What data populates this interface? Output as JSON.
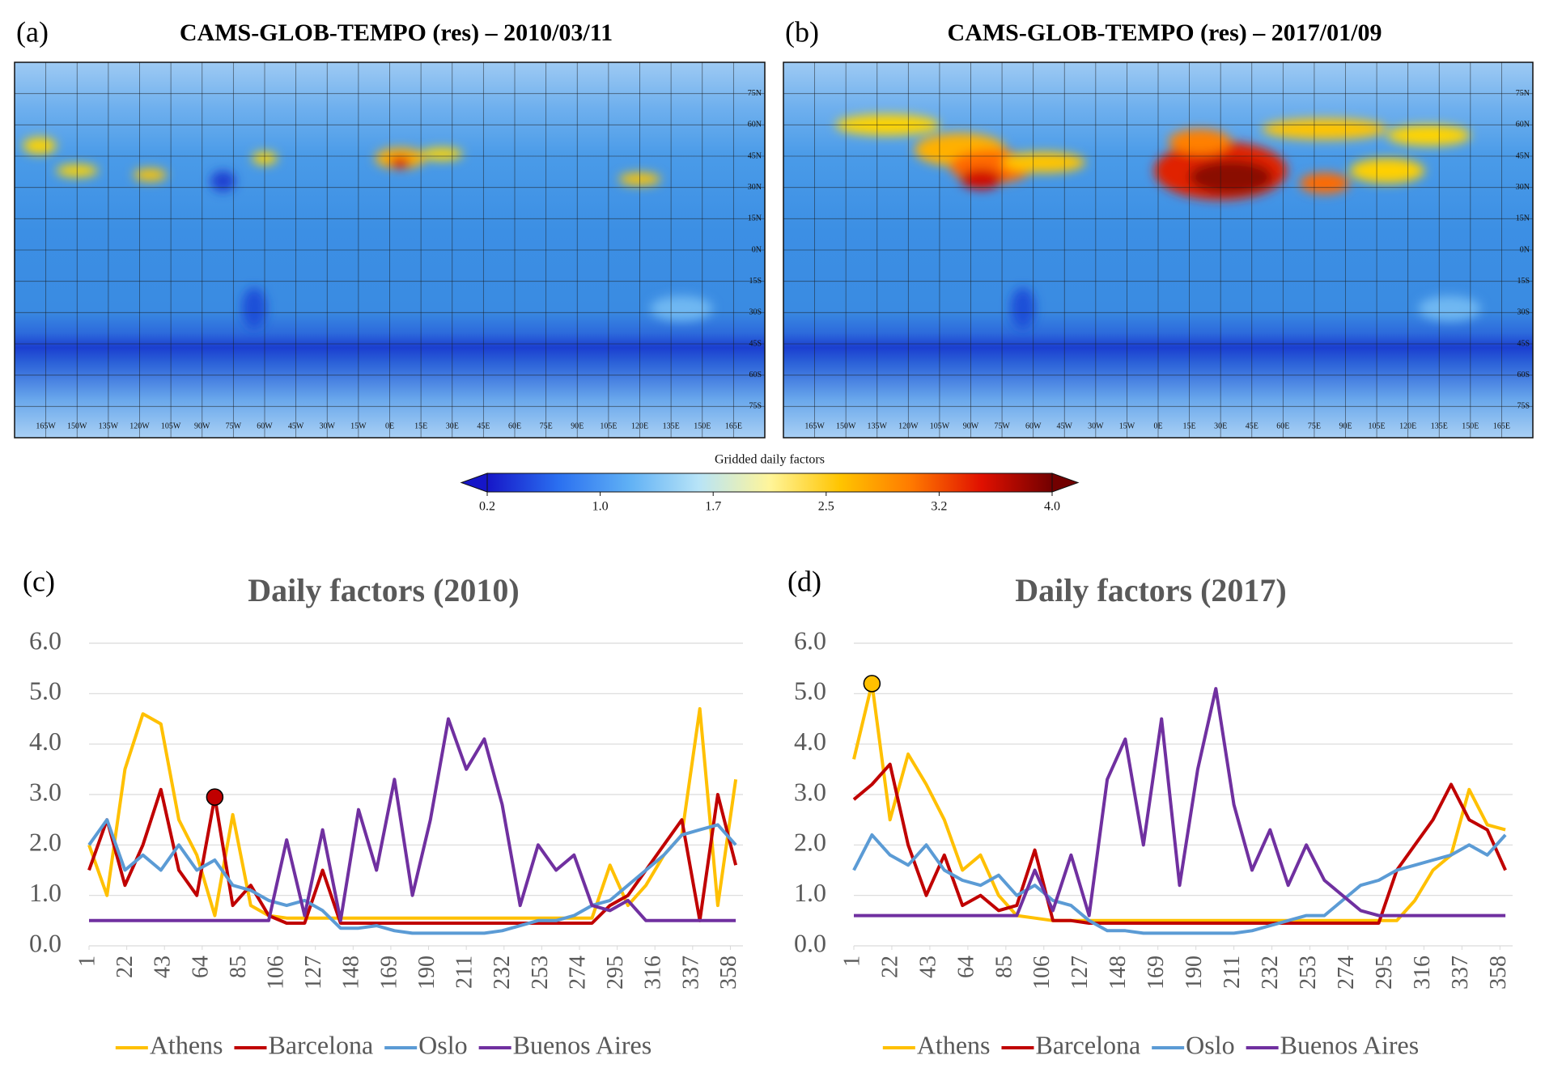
{
  "chart_data": [
    {
      "type": "map",
      "panel": "(a)",
      "title": "CAMS-GLOB-TEMPO (res) – 2010/03/11",
      "xlim": [
        -180,
        180
      ],
      "ylim": [
        -90,
        90
      ],
      "xticks": [
        {
          "value": -165,
          "label": "165W"
        },
        {
          "value": -150,
          "label": "150W"
        },
        {
          "value": -135,
          "label": "135W"
        },
        {
          "value": -120,
          "label": "120W"
        },
        {
          "value": -105,
          "label": "105W"
        },
        {
          "value": -90,
          "label": "90W"
        },
        {
          "value": -75,
          "label": "75W"
        },
        {
          "value": -60,
          "label": "60W"
        },
        {
          "value": -45,
          "label": "45W"
        },
        {
          "value": -30,
          "label": "30W"
        },
        {
          "value": -15,
          "label": "15W"
        },
        {
          "value": 0,
          "label": "0E"
        },
        {
          "value": 15,
          "label": "15E"
        },
        {
          "value": 30,
          "label": "30E"
        },
        {
          "value": 45,
          "label": "45E"
        },
        {
          "value": 60,
          "label": "60E"
        },
        {
          "value": 75,
          "label": "75E"
        },
        {
          "value": 90,
          "label": "90E"
        },
        {
          "value": 105,
          "label": "105E"
        },
        {
          "value": 120,
          "label": "120E"
        },
        {
          "value": 135,
          "label": "135E"
        },
        {
          "value": 150,
          "label": "150E"
        },
        {
          "value": 165,
          "label": "165E"
        }
      ],
      "yticks": [
        {
          "value": 75,
          "label": "75N"
        },
        {
          "value": 60,
          "label": "60N"
        },
        {
          "value": 45,
          "label": "45N"
        },
        {
          "value": 30,
          "label": "30N"
        },
        {
          "value": 15,
          "label": "15N"
        },
        {
          "value": 0,
          "label": "0N"
        },
        {
          "value": -15,
          "label": "15S"
        },
        {
          "value": -30,
          "label": "30S"
        },
        {
          "value": -45,
          "label": "45S"
        },
        {
          "value": -60,
          "label": "60S"
        },
        {
          "value": -75,
          "label": "75S"
        }
      ]
    },
    {
      "type": "map",
      "panel": "(b)",
      "title": "CAMS-GLOB-TEMPO (res) – 2017/01/09",
      "xlim": [
        -180,
        180
      ],
      "ylim": [
        -90,
        90
      ],
      "xticks": [
        {
          "value": -165,
          "label": "165W"
        },
        {
          "value": -150,
          "label": "150W"
        },
        {
          "value": -135,
          "label": "135W"
        },
        {
          "value": -120,
          "label": "120W"
        },
        {
          "value": -105,
          "label": "105W"
        },
        {
          "value": -90,
          "label": "90W"
        },
        {
          "value": -75,
          "label": "75W"
        },
        {
          "value": -60,
          "label": "60W"
        },
        {
          "value": -45,
          "label": "45W"
        },
        {
          "value": -30,
          "label": "30W"
        },
        {
          "value": -15,
          "label": "15W"
        },
        {
          "value": 0,
          "label": "0E"
        },
        {
          "value": 15,
          "label": "15E"
        },
        {
          "value": 30,
          "label": "30E"
        },
        {
          "value": 45,
          "label": "45E"
        },
        {
          "value": 60,
          "label": "60E"
        },
        {
          "value": 75,
          "label": "75E"
        },
        {
          "value": 90,
          "label": "90E"
        },
        {
          "value": 105,
          "label": "105E"
        },
        {
          "value": 120,
          "label": "120E"
        },
        {
          "value": 135,
          "label": "135E"
        },
        {
          "value": 150,
          "label": "150E"
        },
        {
          "value": 165,
          "label": "165E"
        }
      ],
      "yticks": [
        {
          "value": 75,
          "label": "75N"
        },
        {
          "value": 60,
          "label": "60N"
        },
        {
          "value": 45,
          "label": "45N"
        },
        {
          "value": 30,
          "label": "30N"
        },
        {
          "value": 15,
          "label": "15N"
        },
        {
          "value": 0,
          "label": "0N"
        },
        {
          "value": -15,
          "label": "15S"
        },
        {
          "value": -30,
          "label": "30S"
        },
        {
          "value": -45,
          "label": "45S"
        },
        {
          "value": -60,
          "label": "60S"
        },
        {
          "value": -75,
          "label": "75S"
        }
      ]
    },
    {
      "type": "colorbar",
      "title": "Gridded daily factors",
      "xlim": [
        0.2,
        4
      ],
      "xticks": [
        0.2,
        {
          "value": 0.96,
          "label": "1.0"
        },
        {
          "value": 1.72,
          "label": "1.7"
        },
        {
          "value": 2.48,
          "label": "2.5"
        },
        {
          "value": 3.24,
          "label": "3.2"
        },
        {
          "value": 4,
          "label": "4.0"
        }
      ],
      "colors": [
        "#1616c8",
        "#2a6ff0",
        "#5fb0f5",
        "#b8e4f7",
        "#fff59a",
        "#ffc400",
        "#ff7a00",
        "#e01000",
        "#720000"
      ]
    },
    {
      "type": "line",
      "panel": "(c)",
      "title": "Daily factors (2010)",
      "x": [
        1,
        11,
        21,
        31,
        41,
        51,
        61,
        71,
        81,
        91,
        101,
        111,
        121,
        131,
        141,
        151,
        161,
        171,
        181,
        191,
        201,
        211,
        221,
        231,
        241,
        251,
        261,
        271,
        281,
        291,
        301,
        311,
        321,
        331,
        341,
        351,
        361
      ],
      "xlim": [
        1,
        365
      ],
      "xticks": [
        1,
        22,
        43,
        64,
        85,
        106,
        127,
        148,
        169,
        190,
        211,
        232,
        253,
        274,
        295,
        316,
        337,
        358
      ],
      "ylim": [
        0,
        6
      ],
      "yticks": [
        {
          "value": 0,
          "label": "0.0"
        },
        {
          "value": 1,
          "label": "1.0"
        },
        {
          "value": 2,
          "label": "2.0"
        },
        {
          "value": 3,
          "label": "3.0"
        },
        {
          "value": 4,
          "label": "4.0"
        },
        {
          "value": 5,
          "label": "5.0"
        },
        {
          "value": 6,
          "label": "6.0"
        }
      ],
      "grid": true,
      "series": [
        {
          "name": "Athens",
          "color": "#ffc000",
          "values": [
            2.0,
            1.0,
            3.5,
            4.6,
            4.4,
            2.5,
            1.8,
            0.6,
            2.6,
            0.8,
            0.6,
            0.55,
            0.55,
            0.55,
            0.55,
            0.55,
            0.55,
            0.55,
            0.55,
            0.55,
            0.55,
            0.55,
            0.55,
            0.55,
            0.55,
            0.55,
            0.55,
            0.55,
            0.55,
            1.6,
            0.8,
            1.2,
            1.8,
            2.2,
            4.7,
            0.8,
            3.3
          ]
        },
        {
          "name": "Barcelona",
          "color": "#c00000",
          "values": [
            1.5,
            2.5,
            1.2,
            2.0,
            3.1,
            1.5,
            1.0,
            2.95,
            0.8,
            1.2,
            0.6,
            0.45,
            0.45,
            1.5,
            0.45,
            0.45,
            0.45,
            0.45,
            0.45,
            0.45,
            0.45,
            0.45,
            0.45,
            0.45,
            0.45,
            0.45,
            0.45,
            0.45,
            0.45,
            0.8,
            1.0,
            1.5,
            2.0,
            2.5,
            0.5,
            3.0,
            1.6
          ]
        },
        {
          "name": "Oslo",
          "color": "#5b9bd5",
          "values": [
            2.0,
            2.5,
            1.5,
            1.8,
            1.5,
            2.0,
            1.5,
            1.7,
            1.2,
            1.1,
            0.9,
            0.8,
            0.9,
            0.7,
            0.35,
            0.35,
            0.4,
            0.3,
            0.25,
            0.25,
            0.25,
            0.25,
            0.25,
            0.3,
            0.4,
            0.5,
            0.5,
            0.6,
            0.8,
            0.9,
            1.2,
            1.5,
            1.8,
            2.2,
            2.3,
            2.4,
            2.0
          ]
        },
        {
          "name": "Buenos Aires",
          "color": "#7030a0",
          "values": [
            0.5,
            0.5,
            0.5,
            0.5,
            0.5,
            0.5,
            0.5,
            0.5,
            0.5,
            0.5,
            0.5,
            2.1,
            0.6,
            2.3,
            0.5,
            2.7,
            1.5,
            3.3,
            1.0,
            2.5,
            4.5,
            3.5,
            4.1,
            2.8,
            0.8,
            2.0,
            1.5,
            1.8,
            0.8,
            0.7,
            0.9,
            0.5,
            0.5,
            0.5,
            0.5,
            0.5,
            0.5
          ]
        }
      ],
      "highlight": {
        "series": 1,
        "index": 7,
        "color": "#c00000"
      }
    },
    {
      "type": "line",
      "panel": "(d)",
      "title": "Daily factors (2017)",
      "x": [
        1,
        11,
        21,
        31,
        41,
        51,
        61,
        71,
        81,
        91,
        101,
        111,
        121,
        131,
        141,
        151,
        161,
        171,
        181,
        191,
        201,
        211,
        221,
        231,
        241,
        251,
        261,
        271,
        281,
        291,
        301,
        311,
        321,
        331,
        341,
        351,
        361
      ],
      "xlim": [
        1,
        365
      ],
      "xticks": [
        1,
        22,
        43,
        64,
        85,
        106,
        127,
        148,
        169,
        190,
        211,
        232,
        253,
        274,
        295,
        316,
        337,
        358
      ],
      "ylim": [
        0,
        6
      ],
      "yticks": [
        {
          "value": 0,
          "label": "0.0"
        },
        {
          "value": 1,
          "label": "1.0"
        },
        {
          "value": 2,
          "label": "2.0"
        },
        {
          "value": 3,
          "label": "3.0"
        },
        {
          "value": 4,
          "label": "4.0"
        },
        {
          "value": 5,
          "label": "5.0"
        },
        {
          "value": 6,
          "label": "6.0"
        }
      ],
      "grid": true,
      "series": [
        {
          "name": "Athens",
          "color": "#ffc000",
          "values": [
            3.7,
            5.2,
            2.5,
            3.8,
            3.2,
            2.5,
            1.5,
            1.8,
            1.0,
            0.6,
            0.55,
            0.5,
            0.5,
            0.5,
            0.5,
            0.5,
            0.5,
            0.5,
            0.5,
            0.5,
            0.5,
            0.5,
            0.5,
            0.5,
            0.5,
            0.5,
            0.5,
            0.5,
            0.5,
            0.5,
            0.5,
            0.9,
            1.5,
            1.8,
            3.1,
            2.4,
            2.3
          ]
        },
        {
          "name": "Barcelona",
          "color": "#c00000",
          "values": [
            2.9,
            3.2,
            3.6,
            2.0,
            1.0,
            1.8,
            0.8,
            1.0,
            0.7,
            0.8,
            1.9,
            0.5,
            0.5,
            0.45,
            0.45,
            0.45,
            0.45,
            0.45,
            0.45,
            0.45,
            0.45,
            0.45,
            0.45,
            0.45,
            0.45,
            0.45,
            0.45,
            0.45,
            0.45,
            0.45,
            1.5,
            2.0,
            2.5,
            3.2,
            2.5,
            2.3,
            1.5
          ]
        },
        {
          "name": "Oslo",
          "color": "#5b9bd5",
          "values": [
            1.5,
            2.2,
            1.8,
            1.6,
            2.0,
            1.5,
            1.3,
            1.2,
            1.4,
            1.0,
            1.2,
            0.9,
            0.8,
            0.5,
            0.3,
            0.3,
            0.25,
            0.25,
            0.25,
            0.25,
            0.25,
            0.25,
            0.3,
            0.4,
            0.5,
            0.6,
            0.6,
            0.9,
            1.2,
            1.3,
            1.5,
            1.6,
            1.7,
            1.8,
            2.0,
            1.8,
            2.2
          ]
        },
        {
          "name": "Buenos Aires",
          "color": "#7030a0",
          "values": [
            0.6,
            0.6,
            0.6,
            0.6,
            0.6,
            0.6,
            0.6,
            0.6,
            0.6,
            0.6,
            1.5,
            0.7,
            1.8,
            0.6,
            3.3,
            4.1,
            2.0,
            4.5,
            1.2,
            3.5,
            5.1,
            2.8,
            1.5,
            2.3,
            1.2,
            2.0,
            1.3,
            1.0,
            0.7,
            0.6,
            0.6,
            0.6,
            0.6,
            0.6,
            0.6,
            0.6,
            0.6
          ]
        }
      ],
      "highlight": {
        "series": 0,
        "index": 1,
        "color": "#ffc000"
      }
    }
  ]
}
